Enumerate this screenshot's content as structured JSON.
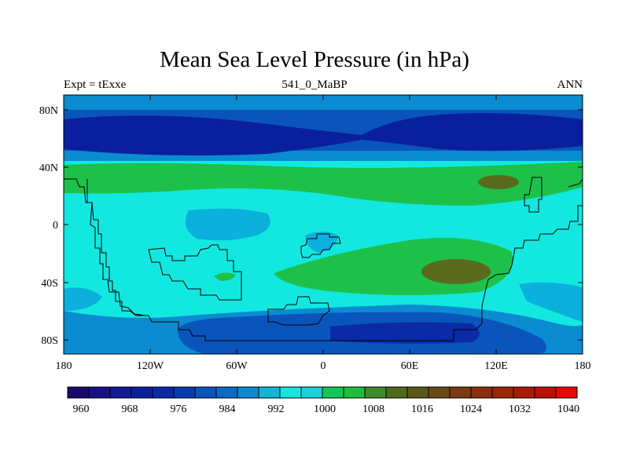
{
  "title": "Mean Sea Level Pressure (in hPa)",
  "left_string": "Expt = tExxe",
  "center_string": "541_0_MaBP",
  "right_string": "ANN",
  "lat_labels": [
    "80N",
    "40N",
    "0",
    "40S",
    "80S"
  ],
  "lon_labels": [
    "180",
    "120W",
    "60W",
    "0",
    "60E",
    "120E",
    "180"
  ],
  "colorbar": {
    "labels": [
      "960",
      "968",
      "976",
      "984",
      "992",
      "1000",
      "1008",
      "1016",
      "1024",
      "1032",
      "1040"
    ],
    "colors": [
      "#1a0a6b",
      "#1a0f85",
      "#111a94",
      "#0a1f9e",
      "#0a2aa6",
      "#0a3ab0",
      "#0a55bb",
      "#0a6ac4",
      "#0b8bd0",
      "#10b5d8",
      "#12e8e0",
      "#16d2da",
      "#12c555",
      "#1dbd3e",
      "#3d8c2a",
      "#506a1c",
      "#5a5a18",
      "#6a4a14",
      "#7c3a10",
      "#8a300c",
      "#9b2508",
      "#aa1a06",
      "#bb1004",
      "#e80808"
    ]
  },
  "field_colors": {
    "deep_low": "#0a1f9e",
    "low": "#0a2aa6",
    "mid_low": "#0a55bb",
    "band": "#0b8bd0",
    "light": "#0bb0dc",
    "base": "#12e8e0",
    "green": "#1dc14a",
    "olive": "#5a6a1c"
  }
}
